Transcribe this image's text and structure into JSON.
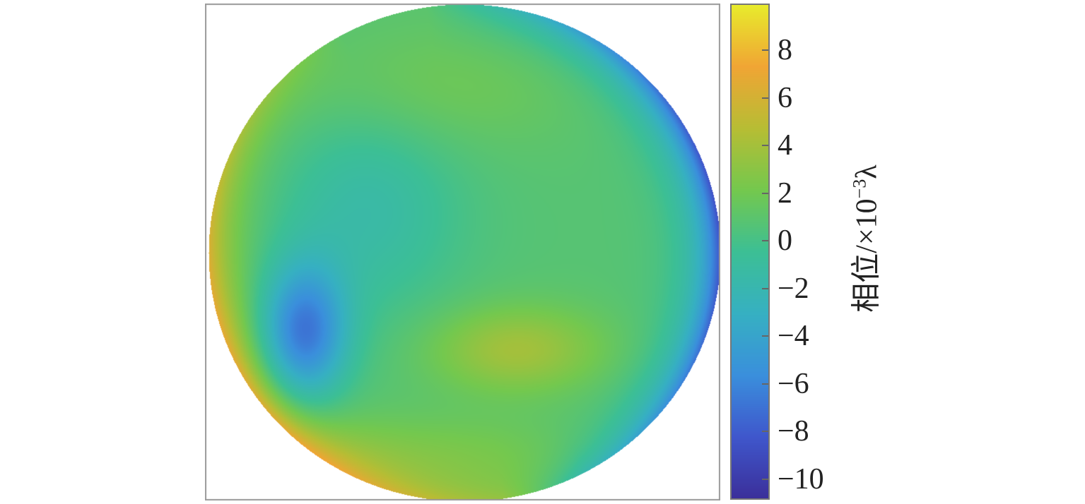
{
  "chart_data": {
    "type": "heatmap",
    "shape": "circular aperture",
    "colormap": "parula",
    "colorbar": {
      "label_prefix": "相位/×10",
      "label_exponent": "−3",
      "label_unit": "λ",
      "ticks": [
        8,
        6,
        4,
        2,
        0,
        -2,
        -4,
        -6,
        -8,
        -10
      ],
      "tick_labels": [
        "8",
        "6",
        "4",
        "2",
        "0",
        "−2",
        "−4",
        "−6",
        "−8",
        "−10"
      ],
      "range": [
        -10.8,
        9.9
      ]
    },
    "colors": [
      "#3b2f9a",
      "#3f57cc",
      "#3a8fdc",
      "#36b0c2",
      "#3cbf95",
      "#74c84e",
      "#b7bd34",
      "#f0a534",
      "#e8eb2c"
    ]
  }
}
